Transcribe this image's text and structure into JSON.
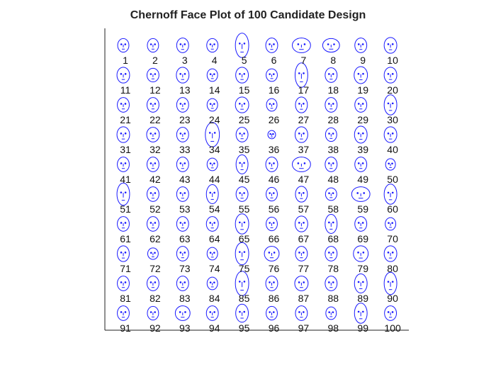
{
  "chart_data": {
    "type": "chernoff_faces",
    "title": "Chernoff Face Plot of 100 Candidate Design",
    "xlabel": "",
    "ylabel": "",
    "grid": false,
    "legend": "none",
    "face_color": "#1a1aff",
    "rows": 10,
    "columns": 10,
    "labels": [
      "1",
      "2",
      "3",
      "4",
      "5",
      "6",
      "7",
      "8",
      "9",
      "10",
      "11",
      "12",
      "13",
      "14",
      "15",
      "16",
      "17",
      "18",
      "19",
      "20",
      "21",
      "22",
      "23",
      "24",
      "25",
      "26",
      "27",
      "28",
      "29",
      "30",
      "31",
      "32",
      "33",
      "34",
      "35",
      "36",
      "37",
      "38",
      "39",
      "40",
      "41",
      "42",
      "43",
      "44",
      "45",
      "46",
      "47",
      "48",
      "49",
      "50",
      "51",
      "52",
      "53",
      "54",
      "55",
      "56",
      "57",
      "58",
      "59",
      "60",
      "61",
      "62",
      "63",
      "64",
      "65",
      "66",
      "67",
      "68",
      "69",
      "70",
      "71",
      "72",
      "73",
      "74",
      "75",
      "76",
      "77",
      "78",
      "79",
      "80",
      "81",
      "82",
      "83",
      "84",
      "85",
      "86",
      "87",
      "88",
      "89",
      "90",
      "91",
      "92",
      "93",
      "94",
      "95",
      "96",
      "97",
      "98",
      "99",
      "100"
    ],
    "faces": [
      [
        0.5,
        0.5
      ],
      [
        0.5,
        0.5
      ],
      [
        0.55,
        0.55
      ],
      [
        0.5,
        0.5
      ],
      [
        0.65,
        1.0
      ],
      [
        0.55,
        0.55
      ],
      [
        1.0,
        0.55
      ],
      [
        0.9,
        0.5
      ],
      [
        0.55,
        0.55
      ],
      [
        0.6,
        0.6
      ],
      [
        0.6,
        0.6
      ],
      [
        0.55,
        0.5
      ],
      [
        0.6,
        0.6
      ],
      [
        0.45,
        0.45
      ],
      [
        0.6,
        0.6
      ],
      [
        0.5,
        0.45
      ],
      [
        0.6,
        1.0
      ],
      [
        0.55,
        0.55
      ],
      [
        0.65,
        0.65
      ],
      [
        0.6,
        0.6
      ],
      [
        0.55,
        0.55
      ],
      [
        0.55,
        0.55
      ],
      [
        0.55,
        0.55
      ],
      [
        0.45,
        0.45
      ],
      [
        0.65,
        0.6
      ],
      [
        0.45,
        0.45
      ],
      [
        0.55,
        0.6
      ],
      [
        0.55,
        0.55
      ],
      [
        0.55,
        0.55
      ],
      [
        0.6,
        0.8
      ],
      [
        0.6,
        0.6
      ],
      [
        0.6,
        0.55
      ],
      [
        0.55,
        0.55
      ],
      [
        0.7,
        1.0
      ],
      [
        0.55,
        0.55
      ],
      [
        0.25,
        0.25
      ],
      [
        0.6,
        0.6
      ],
      [
        0.5,
        0.5
      ],
      [
        0.6,
        0.65
      ],
      [
        0.6,
        0.6
      ],
      [
        0.55,
        0.55
      ],
      [
        0.55,
        0.55
      ],
      [
        0.55,
        0.55
      ],
      [
        0.45,
        0.45
      ],
      [
        0.55,
        0.75
      ],
      [
        0.55,
        0.55
      ],
      [
        1.0,
        0.55
      ],
      [
        0.55,
        0.55
      ],
      [
        0.55,
        0.55
      ],
      [
        0.4,
        0.4
      ],
      [
        0.6,
        0.9
      ],
      [
        0.55,
        0.55
      ],
      [
        0.55,
        0.55
      ],
      [
        0.55,
        0.75
      ],
      [
        0.55,
        0.55
      ],
      [
        0.5,
        0.5
      ],
      [
        0.55,
        0.6
      ],
      [
        0.5,
        0.45
      ],
      [
        1.0,
        0.55
      ],
      [
        0.6,
        0.8
      ],
      [
        0.55,
        0.55
      ],
      [
        0.55,
        0.55
      ],
      [
        0.55,
        0.55
      ],
      [
        0.55,
        0.55
      ],
      [
        0.65,
        0.8
      ],
      [
        0.5,
        0.5
      ],
      [
        0.6,
        0.6
      ],
      [
        0.55,
        0.75
      ],
      [
        0.55,
        0.55
      ],
      [
        0.45,
        0.45
      ],
      [
        0.55,
        0.6
      ],
      [
        0.45,
        0.4
      ],
      [
        0.55,
        0.55
      ],
      [
        0.45,
        0.45
      ],
      [
        0.65,
        0.9
      ],
      [
        0.75,
        0.55
      ],
      [
        0.55,
        0.55
      ],
      [
        0.55,
        0.55
      ],
      [
        0.75,
        0.6
      ],
      [
        0.6,
        0.6
      ],
      [
        0.55,
        0.55
      ],
      [
        0.55,
        0.55
      ],
      [
        0.55,
        0.55
      ],
      [
        0.45,
        0.45
      ],
      [
        0.65,
        1.0
      ],
      [
        0.55,
        0.55
      ],
      [
        0.65,
        0.55
      ],
      [
        0.55,
        0.55
      ],
      [
        0.6,
        0.75
      ],
      [
        0.6,
        0.9
      ],
      [
        0.55,
        0.55
      ],
      [
        0.5,
        0.5
      ],
      [
        0.75,
        0.55
      ],
      [
        0.55,
        0.55
      ],
      [
        0.6,
        0.7
      ],
      [
        0.5,
        0.5
      ],
      [
        0.55,
        0.55
      ],
      [
        0.45,
        0.45
      ],
      [
        0.6,
        0.8
      ],
      [
        0.55,
        0.55
      ]
    ]
  }
}
